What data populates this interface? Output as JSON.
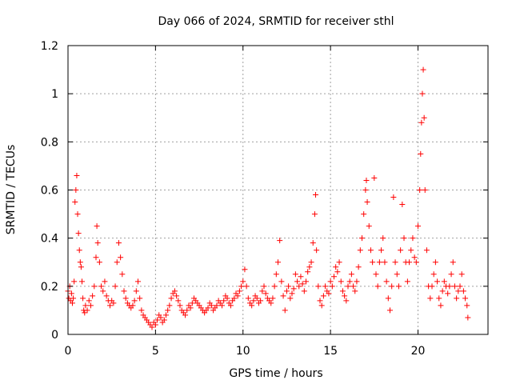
{
  "chart_data": {
    "type": "scatter",
    "title": "Day 066 of 2024, SRMTID for receiver sthl",
    "xlabel": "GPS time / hours",
    "ylabel": "SRMTID / TECUs",
    "xlim": [
      0,
      24
    ],
    "ylim": [
      0,
      1.2
    ],
    "x_ticks": [
      0,
      5,
      10,
      15,
      20
    ],
    "y_ticks": [
      0,
      0.2,
      0.4,
      0.6,
      0.8,
      1,
      1.2
    ],
    "x_tick_labels": [
      "0",
      "5",
      "10",
      "15",
      "20"
    ],
    "y_tick_labels": [
      "0",
      "0.2",
      "0.4",
      "0.6",
      "0.8",
      "1",
      "1.2"
    ],
    "grid": true,
    "marker": "+",
    "color": "#ff0000",
    "series": [
      {
        "name": "SRMTID",
        "points": [
          [
            0.0,
            0.18
          ],
          [
            0.05,
            0.15
          ],
          [
            0.1,
            0.2
          ],
          [
            0.15,
            0.14
          ],
          [
            0.2,
            0.17
          ],
          [
            0.25,
            0.13
          ],
          [
            0.3,
            0.15
          ],
          [
            0.35,
            0.22
          ],
          [
            0.4,
            0.55
          ],
          [
            0.45,
            0.6
          ],
          [
            0.5,
            0.66
          ],
          [
            0.55,
            0.5
          ],
          [
            0.6,
            0.42
          ],
          [
            0.65,
            0.35
          ],
          [
            0.7,
            0.3
          ],
          [
            0.75,
            0.28
          ],
          [
            0.8,
            0.22
          ],
          [
            0.85,
            0.15
          ],
          [
            0.9,
            0.1
          ],
          [
            0.95,
            0.09
          ],
          [
            1.0,
            0.12
          ],
          [
            1.1,
            0.1
          ],
          [
            1.2,
            0.14
          ],
          [
            1.3,
            0.12
          ],
          [
            1.4,
            0.16
          ],
          [
            1.5,
            0.2
          ],
          [
            1.6,
            0.32
          ],
          [
            1.65,
            0.45
          ],
          [
            1.7,
            0.38
          ],
          [
            1.8,
            0.3
          ],
          [
            1.9,
            0.2
          ],
          [
            2.0,
            0.18
          ],
          [
            2.1,
            0.22
          ],
          [
            2.2,
            0.16
          ],
          [
            2.3,
            0.14
          ],
          [
            2.4,
            0.12
          ],
          [
            2.5,
            0.14
          ],
          [
            2.6,
            0.13
          ],
          [
            2.7,
            0.2
          ],
          [
            2.8,
            0.3
          ],
          [
            2.9,
            0.38
          ],
          [
            3.0,
            0.32
          ],
          [
            3.1,
            0.25
          ],
          [
            3.2,
            0.18
          ],
          [
            3.3,
            0.15
          ],
          [
            3.4,
            0.13
          ],
          [
            3.5,
            0.12
          ],
          [
            3.6,
            0.11
          ],
          [
            3.7,
            0.12
          ],
          [
            3.8,
            0.14
          ],
          [
            3.9,
            0.18
          ],
          [
            4.0,
            0.22
          ],
          [
            4.1,
            0.15
          ],
          [
            4.2,
            0.1
          ],
          [
            4.3,
            0.08
          ],
          [
            4.4,
            0.07
          ],
          [
            4.5,
            0.06
          ],
          [
            4.6,
            0.05
          ],
          [
            4.7,
            0.04
          ],
          [
            4.8,
            0.03
          ],
          [
            4.9,
            0.05
          ],
          [
            5.0,
            0.04
          ],
          [
            5.1,
            0.06
          ],
          [
            5.2,
            0.08
          ],
          [
            5.3,
            0.07
          ],
          [
            5.4,
            0.05
          ],
          [
            5.5,
            0.06
          ],
          [
            5.6,
            0.08
          ],
          [
            5.7,
            0.1
          ],
          [
            5.8,
            0.12
          ],
          [
            5.9,
            0.15
          ],
          [
            6.0,
            0.17
          ],
          [
            6.1,
            0.18
          ],
          [
            6.2,
            0.16
          ],
          [
            6.3,
            0.14
          ],
          [
            6.4,
            0.12
          ],
          [
            6.5,
            0.1
          ],
          [
            6.6,
            0.09
          ],
          [
            6.7,
            0.08
          ],
          [
            6.8,
            0.1
          ],
          [
            6.9,
            0.12
          ],
          [
            7.0,
            0.11
          ],
          [
            7.1,
            0.13
          ],
          [
            7.2,
            0.15
          ],
          [
            7.3,
            0.14
          ],
          [
            7.4,
            0.13
          ],
          [
            7.5,
            0.12
          ],
          [
            7.6,
            0.11
          ],
          [
            7.7,
            0.1
          ],
          [
            7.8,
            0.09
          ],
          [
            7.9,
            0.1
          ],
          [
            8.0,
            0.11
          ],
          [
            8.1,
            0.13
          ],
          [
            8.2,
            0.12
          ],
          [
            8.3,
            0.1
          ],
          [
            8.4,
            0.11
          ],
          [
            8.5,
            0.12
          ],
          [
            8.6,
            0.14
          ],
          [
            8.7,
            0.13
          ],
          [
            8.8,
            0.12
          ],
          [
            8.9,
            0.14
          ],
          [
            9.0,
            0.16
          ],
          [
            9.1,
            0.15
          ],
          [
            9.2,
            0.13
          ],
          [
            9.3,
            0.12
          ],
          [
            9.4,
            0.14
          ],
          [
            9.5,
            0.15
          ],
          [
            9.6,
            0.17
          ],
          [
            9.7,
            0.16
          ],
          [
            9.8,
            0.18
          ],
          [
            9.9,
            0.2
          ],
          [
            10.0,
            0.22
          ],
          [
            10.1,
            0.27
          ],
          [
            10.2,
            0.2
          ],
          [
            10.3,
            0.15
          ],
          [
            10.4,
            0.13
          ],
          [
            10.5,
            0.12
          ],
          [
            10.6,
            0.14
          ],
          [
            10.7,
            0.16
          ],
          [
            10.8,
            0.15
          ],
          [
            10.9,
            0.13
          ],
          [
            11.0,
            0.14
          ],
          [
            11.1,
            0.18
          ],
          [
            11.2,
            0.2
          ],
          [
            11.3,
            0.17
          ],
          [
            11.4,
            0.15
          ],
          [
            11.5,
            0.14
          ],
          [
            11.6,
            0.13
          ],
          [
            11.7,
            0.15
          ],
          [
            11.8,
            0.2
          ],
          [
            11.9,
            0.25
          ],
          [
            12.0,
            0.3
          ],
          [
            12.1,
            0.39
          ],
          [
            12.2,
            0.22
          ],
          [
            12.3,
            0.16
          ],
          [
            12.4,
            0.1
          ],
          [
            12.5,
            0.18
          ],
          [
            12.6,
            0.2
          ],
          [
            12.7,
            0.15
          ],
          [
            12.8,
            0.17
          ],
          [
            12.9,
            0.19
          ],
          [
            13.0,
            0.25
          ],
          [
            13.1,
            0.22
          ],
          [
            13.2,
            0.2
          ],
          [
            13.3,
            0.24
          ],
          [
            13.4,
            0.21
          ],
          [
            13.5,
            0.18
          ],
          [
            13.6,
            0.22
          ],
          [
            13.7,
            0.26
          ],
          [
            13.8,
            0.28
          ],
          [
            13.9,
            0.3
          ],
          [
            14.0,
            0.38
          ],
          [
            14.1,
            0.5
          ],
          [
            14.15,
            0.58
          ],
          [
            14.2,
            0.35
          ],
          [
            14.3,
            0.2
          ],
          [
            14.4,
            0.14
          ],
          [
            14.5,
            0.12
          ],
          [
            14.6,
            0.16
          ],
          [
            14.7,
            0.2
          ],
          [
            14.8,
            0.18
          ],
          [
            14.9,
            0.17
          ],
          [
            15.0,
            0.22
          ],
          [
            15.1,
            0.2
          ],
          [
            15.2,
            0.24
          ],
          [
            15.3,
            0.28
          ],
          [
            15.4,
            0.26
          ],
          [
            15.5,
            0.3
          ],
          [
            15.6,
            0.22
          ],
          [
            15.7,
            0.18
          ],
          [
            15.8,
            0.16
          ],
          [
            15.9,
            0.14
          ],
          [
            16.0,
            0.2
          ],
          [
            16.1,
            0.22
          ],
          [
            16.2,
            0.25
          ],
          [
            16.3,
            0.2
          ],
          [
            16.4,
            0.18
          ],
          [
            16.5,
            0.22
          ],
          [
            16.6,
            0.28
          ],
          [
            16.7,
            0.35
          ],
          [
            16.8,
            0.4
          ],
          [
            16.9,
            0.5
          ],
          [
            17.0,
            0.6
          ],
          [
            17.05,
            0.64
          ],
          [
            17.1,
            0.55
          ],
          [
            17.2,
            0.45
          ],
          [
            17.3,
            0.35
          ],
          [
            17.4,
            0.3
          ],
          [
            17.5,
            0.65
          ],
          [
            17.6,
            0.25
          ],
          [
            17.7,
            0.2
          ],
          [
            17.8,
            0.3
          ],
          [
            17.9,
            0.35
          ],
          [
            18.0,
            0.4
          ],
          [
            18.1,
            0.3
          ],
          [
            18.2,
            0.22
          ],
          [
            18.3,
            0.15
          ],
          [
            18.4,
            0.1
          ],
          [
            18.5,
            0.2
          ],
          [
            18.6,
            0.57
          ],
          [
            18.7,
            0.3
          ],
          [
            18.8,
            0.25
          ],
          [
            18.9,
            0.2
          ],
          [
            19.0,
            0.35
          ],
          [
            19.1,
            0.54
          ],
          [
            19.2,
            0.4
          ],
          [
            19.3,
            0.3
          ],
          [
            19.4,
            0.22
          ],
          [
            19.5,
            0.3
          ],
          [
            19.6,
            0.35
          ],
          [
            19.7,
            0.4
          ],
          [
            19.8,
            0.32
          ],
          [
            19.9,
            0.3
          ],
          [
            20.0,
            0.45
          ],
          [
            20.1,
            0.6
          ],
          [
            20.15,
            0.75
          ],
          [
            20.2,
            0.88
          ],
          [
            20.25,
            1.0
          ],
          [
            20.3,
            1.1
          ],
          [
            20.35,
            0.9
          ],
          [
            20.4,
            0.6
          ],
          [
            20.5,
            0.35
          ],
          [
            20.6,
            0.2
          ],
          [
            20.7,
            0.15
          ],
          [
            20.8,
            0.2
          ],
          [
            20.9,
            0.25
          ],
          [
            21.0,
            0.3
          ],
          [
            21.1,
            0.22
          ],
          [
            21.2,
            0.15
          ],
          [
            21.3,
            0.12
          ],
          [
            21.4,
            0.18
          ],
          [
            21.5,
            0.22
          ],
          [
            21.6,
            0.2
          ],
          [
            21.7,
            0.17
          ],
          [
            21.8,
            0.2
          ],
          [
            21.9,
            0.25
          ],
          [
            22.0,
            0.3
          ],
          [
            22.1,
            0.2
          ],
          [
            22.2,
            0.15
          ],
          [
            22.3,
            0.18
          ],
          [
            22.4,
            0.2
          ],
          [
            22.5,
            0.25
          ],
          [
            22.6,
            0.18
          ],
          [
            22.7,
            0.15
          ],
          [
            22.8,
            0.12
          ],
          [
            22.85,
            0.07
          ]
        ]
      }
    ]
  }
}
